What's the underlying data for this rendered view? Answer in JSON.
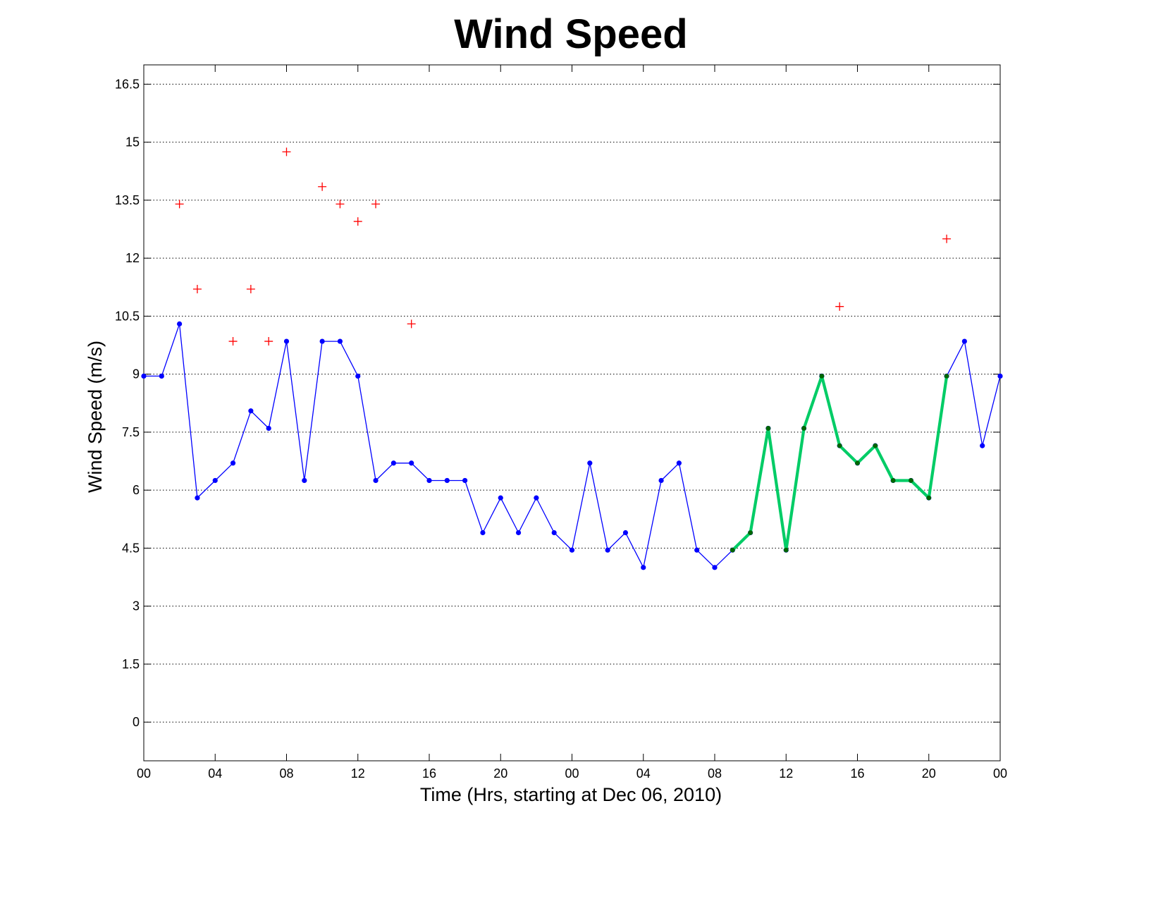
{
  "chart_data": {
    "type": "line",
    "title": "Wind Speed",
    "xlabel": "Time (Hrs, starting at Dec 06, 2010)",
    "ylabel": "Wind Speed (m/s)",
    "xlim": [
      0,
      48
    ],
    "ylim": [
      -1,
      17
    ],
    "yticks": [
      0,
      1.5,
      3,
      4.5,
      6,
      7.5,
      9,
      10.5,
      12,
      13.5,
      15,
      16.5
    ],
    "ytick_labels": [
      "0",
      "1.5",
      "3",
      "4.5",
      "6",
      "7.5",
      "9",
      "10.5",
      "12",
      "13.5",
      "15",
      "16.5"
    ],
    "xticks": [
      0,
      4,
      8,
      12,
      16,
      20,
      24,
      28,
      32,
      36,
      40,
      44,
      48
    ],
    "xtick_labels": [
      "00",
      "04",
      "08",
      "12",
      "16",
      "20",
      "00",
      "04",
      "08",
      "12",
      "16",
      "20",
      "00"
    ],
    "grid": "horizontal dotted",
    "series": [
      {
        "style": "line-dots",
        "color": "#0000ff",
        "x": [
          0,
          1,
          2,
          3,
          4,
          5,
          6,
          7,
          8,
          9,
          10,
          11,
          12,
          13,
          14,
          15,
          16,
          17,
          18,
          19,
          20,
          21,
          22,
          23,
          24,
          25,
          26,
          27,
          28,
          29,
          30,
          31,
          32,
          33,
          34,
          35,
          36,
          37,
          38,
          39,
          40,
          41,
          42,
          43,
          44,
          45,
          46,
          47,
          48
        ],
        "values": [
          8.95,
          8.95,
          10.3,
          5.8,
          6.25,
          6.7,
          8.05,
          7.6,
          9.85,
          6.25,
          9.85,
          9.85,
          8.95,
          6.25,
          6.7,
          6.7,
          6.25,
          6.25,
          6.25,
          4.9,
          5.8,
          4.9,
          5.8,
          4.9,
          4.45,
          6.7,
          4.45,
          4.9,
          4.0,
          6.25,
          6.7,
          4.45,
          4.0,
          4.45,
          4.9,
          7.6,
          4.45,
          7.6,
          8.95,
          7.15,
          6.7,
          7.15,
          6.25,
          6.25,
          5.8,
          8.95,
          9.85,
          7.15,
          8.95
        ]
      },
      {
        "style": "thick-line",
        "color": "#00cc66",
        "marker_color": "#006600",
        "x": [
          33,
          34,
          35,
          36,
          37,
          38,
          39,
          40,
          41,
          42,
          43,
          44,
          45
        ],
        "values": [
          4.45,
          4.9,
          7.6,
          4.45,
          7.6,
          8.95,
          7.15,
          6.7,
          7.15,
          6.25,
          6.25,
          5.8,
          8.95
        ]
      },
      {
        "style": "plus-markers",
        "color": "#ff0000",
        "x": [
          2,
          3,
          5,
          6,
          7,
          8,
          10,
          11,
          12,
          13,
          15,
          39,
          45
        ],
        "values": [
          13.4,
          11.2,
          9.85,
          11.2,
          9.85,
          14.75,
          13.85,
          13.4,
          12.95,
          13.4,
          10.3,
          10.75,
          12.5
        ]
      }
    ]
  }
}
